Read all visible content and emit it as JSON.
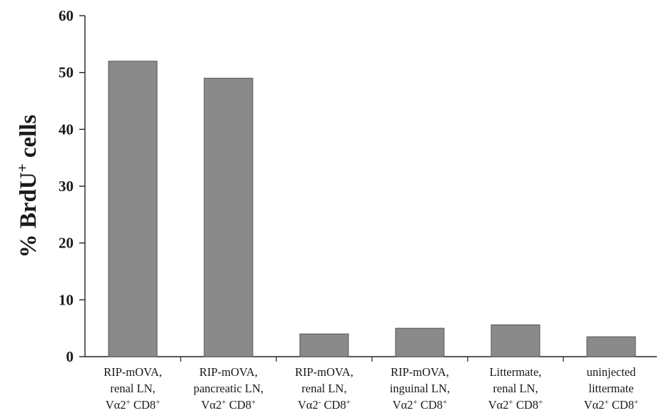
{
  "chart_data": {
    "type": "bar",
    "title": "",
    "xlabel": "",
    "ylabel": {
      "prefix": "% BrdU",
      "superscript": "+",
      "suffix": " cells"
    },
    "ylim": [
      0,
      60
    ],
    "yticks": [
      0,
      10,
      20,
      30,
      40,
      50,
      60
    ],
    "grid": false,
    "legend": "none",
    "bar_color": "#8a8a8a",
    "categories": [
      {
        "lines": [
          [
            {
              "t": "RIP-mOVA,",
              "sup": false
            }
          ],
          [
            {
              "t": "renal LN,",
              "sup": false
            }
          ],
          [
            {
              "t": "Vα2",
              "sup": false
            },
            {
              "t": "+",
              "sup": true
            },
            {
              "t": " CD8",
              "sup": false
            },
            {
              "t": "+",
              "sup": true
            }
          ]
        ]
      },
      {
        "lines": [
          [
            {
              "t": "RIP-mOVA,",
              "sup": false
            }
          ],
          [
            {
              "t": "pancreatic LN,",
              "sup": false
            }
          ],
          [
            {
              "t": "Vα2",
              "sup": false
            },
            {
              "t": "+",
              "sup": true
            },
            {
              "t": " CD8",
              "sup": false
            },
            {
              "t": "+",
              "sup": true
            }
          ]
        ]
      },
      {
        "lines": [
          [
            {
              "t": "RIP-mOVA,",
              "sup": false
            }
          ],
          [
            {
              "t": "renal LN,",
              "sup": false
            }
          ],
          [
            {
              "t": "Vα2",
              "sup": false
            },
            {
              "t": "-",
              "sup": true
            },
            {
              "t": " CD8",
              "sup": false
            },
            {
              "t": "+",
              "sup": true
            }
          ]
        ]
      },
      {
        "lines": [
          [
            {
              "t": "RIP-mOVA,",
              "sup": false
            }
          ],
          [
            {
              "t": "inguinal LN,",
              "sup": false
            }
          ],
          [
            {
              "t": "Vα2",
              "sup": false
            },
            {
              "t": "+",
              "sup": true
            },
            {
              "t": " CD8",
              "sup": false
            },
            {
              "t": "+",
              "sup": true
            }
          ]
        ]
      },
      {
        "lines": [
          [
            {
              "t": "Littermate,",
              "sup": false
            }
          ],
          [
            {
              "t": "renal LN,",
              "sup": false
            }
          ],
          [
            {
              "t": "Vα2",
              "sup": false
            },
            {
              "t": "+",
              "sup": true
            },
            {
              "t": " CD8",
              "sup": false
            },
            {
              "t": "+",
              "sup": true
            }
          ]
        ]
      },
      {
        "lines": [
          [
            {
              "t": "uninjected",
              "sup": false
            }
          ],
          [
            {
              "t": "littermate",
              "sup": false
            }
          ],
          [
            {
              "t": "Vα2",
              "sup": false
            },
            {
              "t": "+",
              "sup": true
            },
            {
              "t": " CD8",
              "sup": false
            },
            {
              "t": "+",
              "sup": true
            }
          ]
        ]
      }
    ],
    "values": [
      52,
      49,
      4,
      5,
      5.6,
      3.5
    ]
  }
}
